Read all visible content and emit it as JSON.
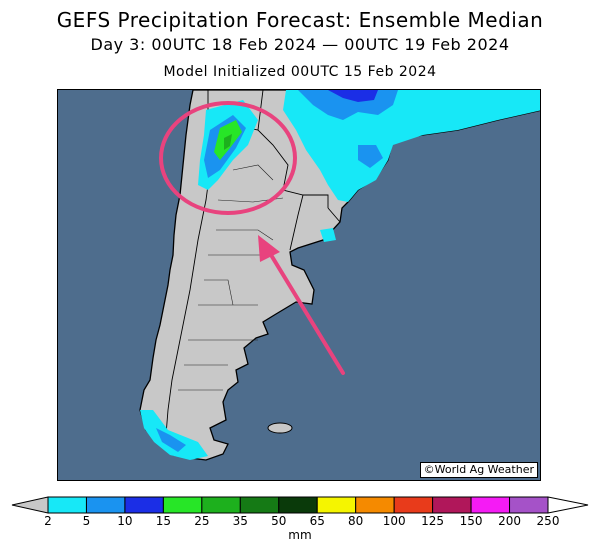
{
  "header": {
    "title": "GEFS Precipitation Forecast: Ensemble Median",
    "valid_period": "Day 3: 00UTC 18 Feb 2024 — 00UTC 19 Feb 2024",
    "init": "Model Initialized 00UTC 15 Feb 2024"
  },
  "map": {
    "ocean_color": "#4e6d8d",
    "land_color": "#c8c8c8",
    "credit": "©World Ag Weather",
    "annotations": {
      "circle_color": "#e8437e",
      "arrow_color": "#e8437e"
    }
  },
  "colorbar": {
    "units": "mm",
    "min_label": "2",
    "levels": [
      {
        "label": "5",
        "color": "#17e8f7"
      },
      {
        "label": "10",
        "color": "#1a93f0"
      },
      {
        "label": "15",
        "color": "#1b2ee6"
      },
      {
        "label": "25",
        "color": "#27e627"
      },
      {
        "label": "35",
        "color": "#1db01d"
      },
      {
        "label": "50",
        "color": "#157a15"
      },
      {
        "label": "65",
        "color": "#0a3a0a"
      },
      {
        "label": "80",
        "color": "#f5f500"
      },
      {
        "label": "100",
        "color": "#f58a00"
      },
      {
        "label": "125",
        "color": "#e83b1b"
      },
      {
        "label": "150",
        "color": "#b0175a"
      },
      {
        "label": "200",
        "color": "#f51bf5"
      },
      {
        "label": "250",
        "color": "#a552c8"
      }
    ]
  }
}
